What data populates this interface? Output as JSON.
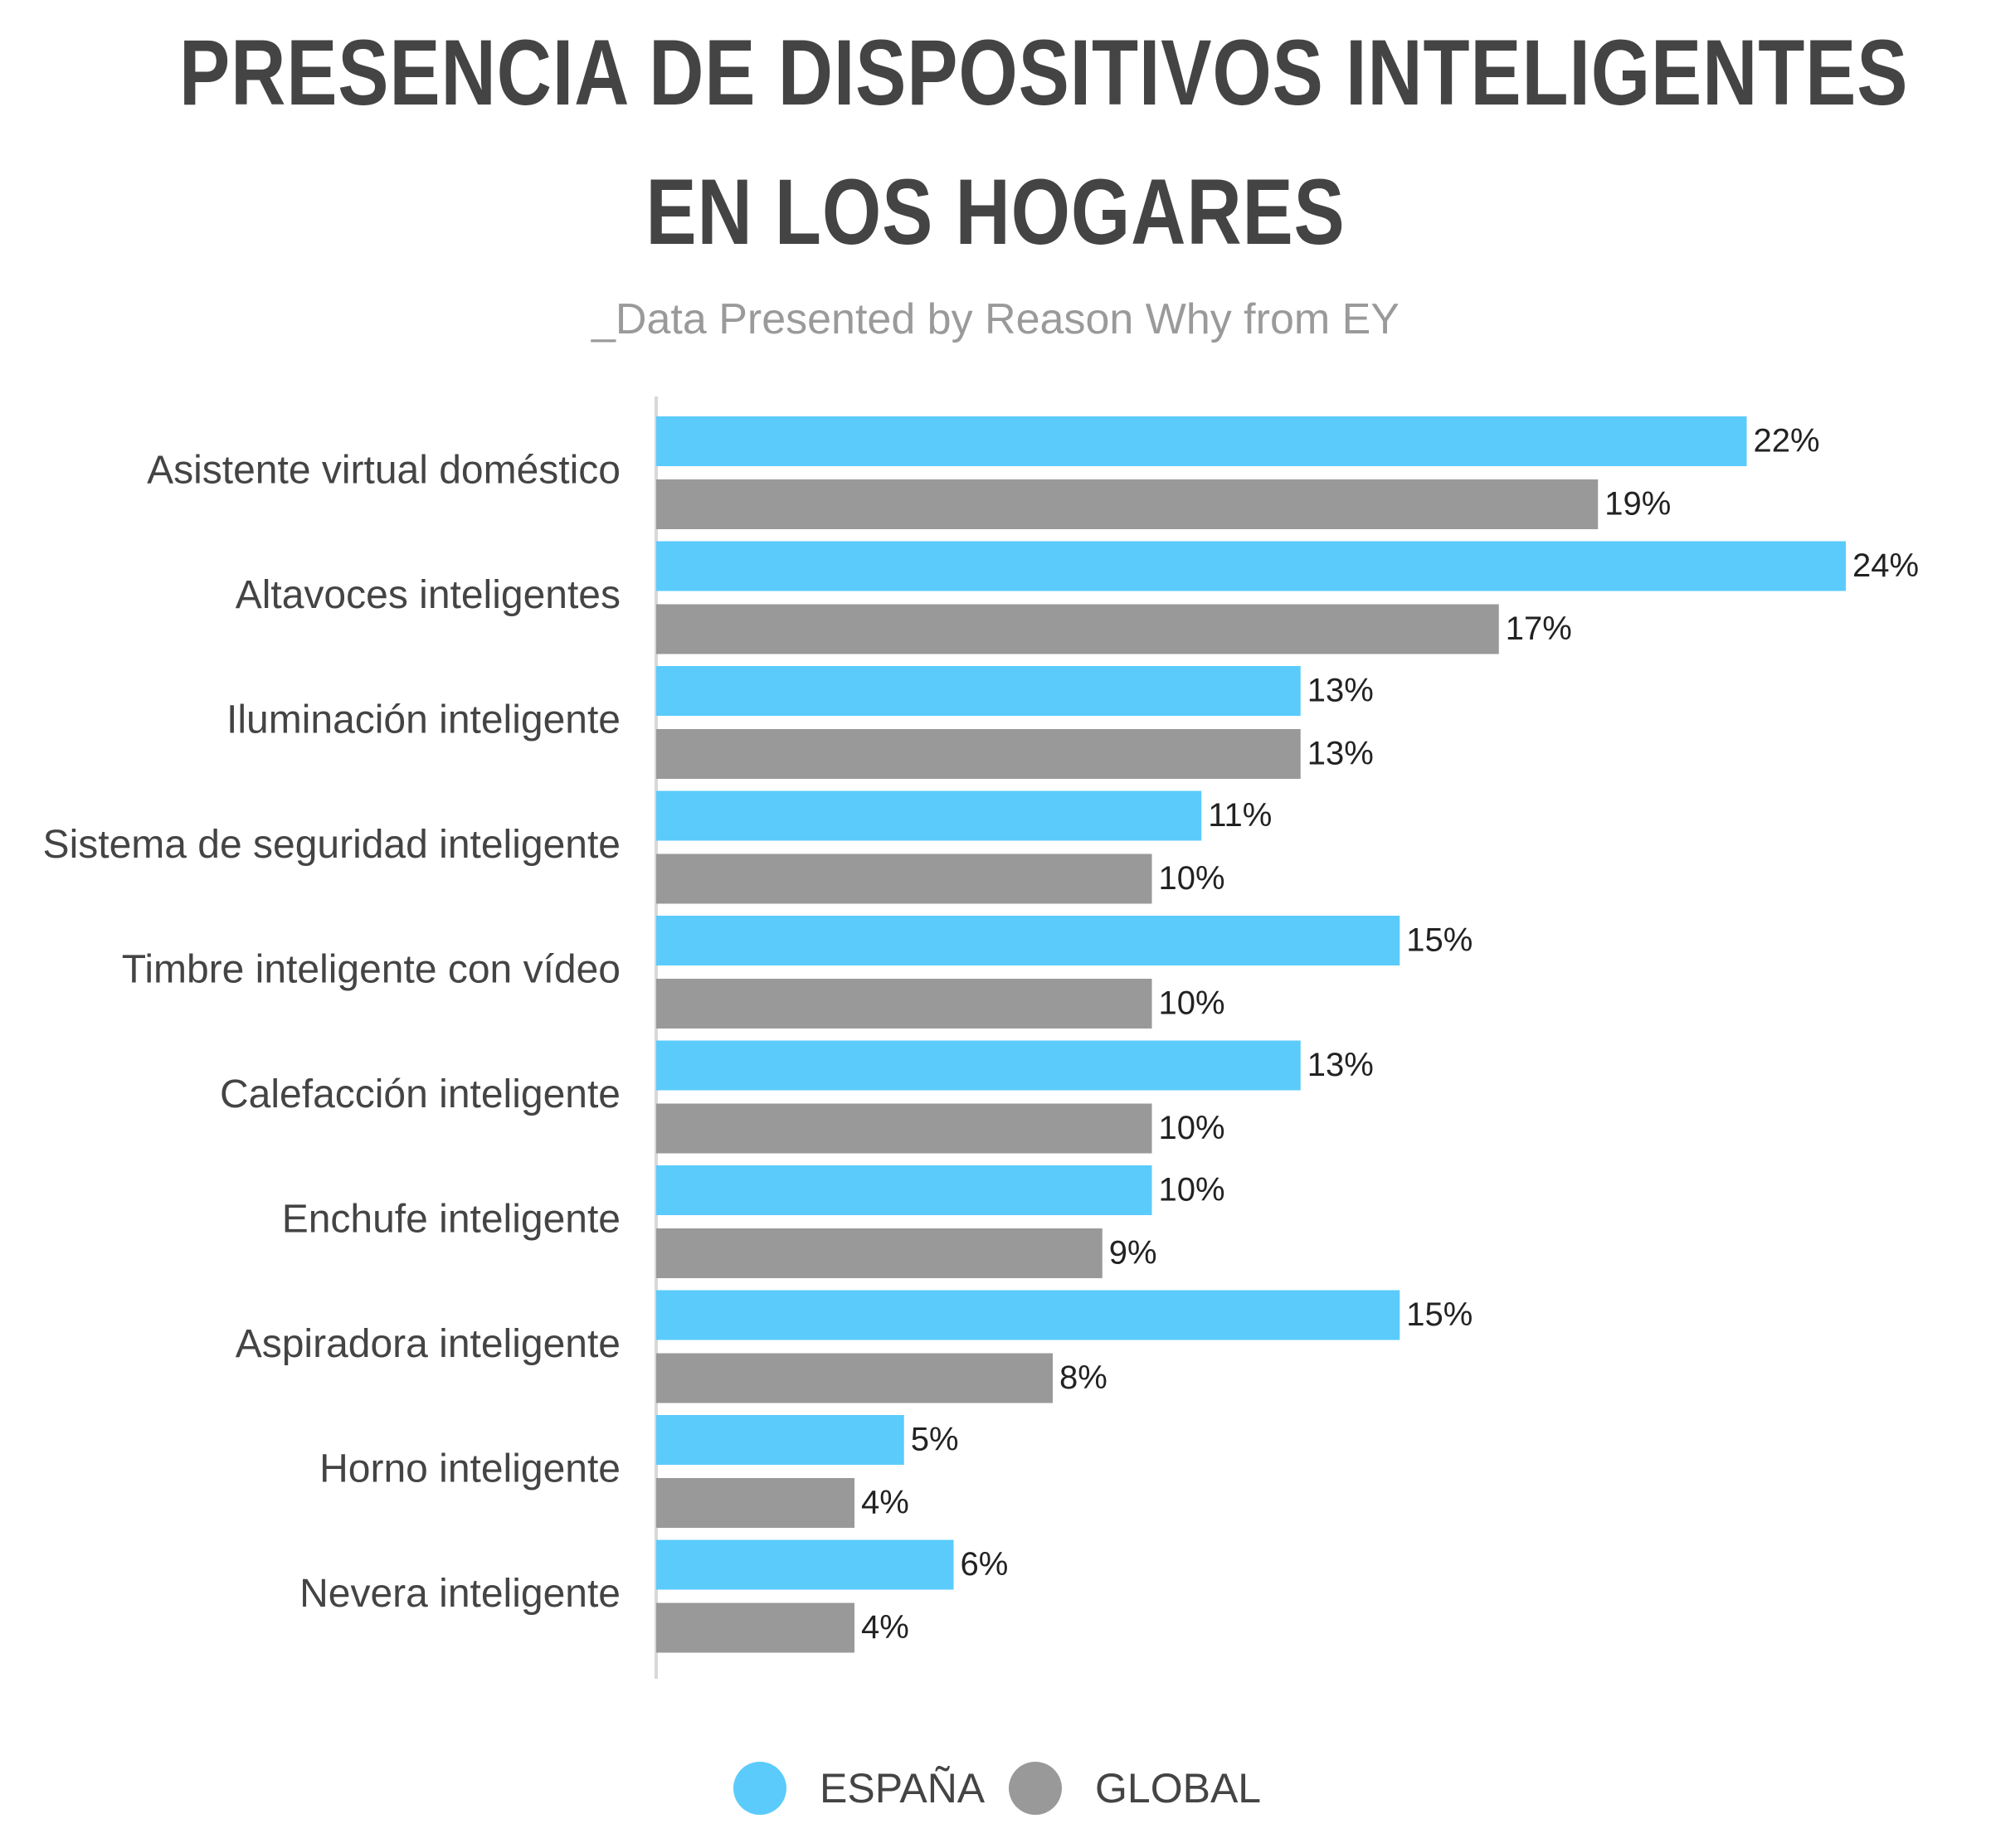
{
  "title_line1": "PRESENCIA DE DISPOSITIVOS INTELIGENTES",
  "title_line2": "EN LOS HOGARES",
  "subtitle": "_Data Presented by Reason Why from EY",
  "colors": {
    "espana": "#5bcbfc",
    "global": "#999999",
    "axis": "#d8d8d8",
    "text": "#444444"
  },
  "chart_data": {
    "type": "bar",
    "orientation": "horizontal",
    "categories": [
      "Asistente virtual doméstico",
      "Altavoces inteligentes",
      "Iluminación inteligente",
      "Sistema de seguridad inteligente",
      "Timbre inteligente con vídeo",
      "Calefacción inteligente",
      "Enchufe inteligente",
      "Aspiradora inteligente",
      "Horno inteligente",
      "Nevera inteligente"
    ],
    "series": [
      {
        "name": "ESPAÑA",
        "values": [
          22,
          24,
          13,
          11,
          15,
          13,
          10,
          15,
          5,
          6
        ],
        "labels": [
          "22%",
          "24%",
          "13%",
          "11%",
          "15%",
          "13%",
          "10%",
          "15%",
          "5%",
          "6%"
        ]
      },
      {
        "name": "GLOBAL",
        "values": [
          19,
          17,
          13,
          10,
          10,
          10,
          9,
          8,
          4,
          4
        ],
        "labels": [
          "19%",
          "17%",
          "13%",
          "10%",
          "10%",
          "10%",
          "9%",
          "8%",
          "4%",
          "4%"
        ]
      }
    ],
    "xlim": [
      0,
      24
    ],
    "grid": false,
    "legend": "bottom-center"
  }
}
